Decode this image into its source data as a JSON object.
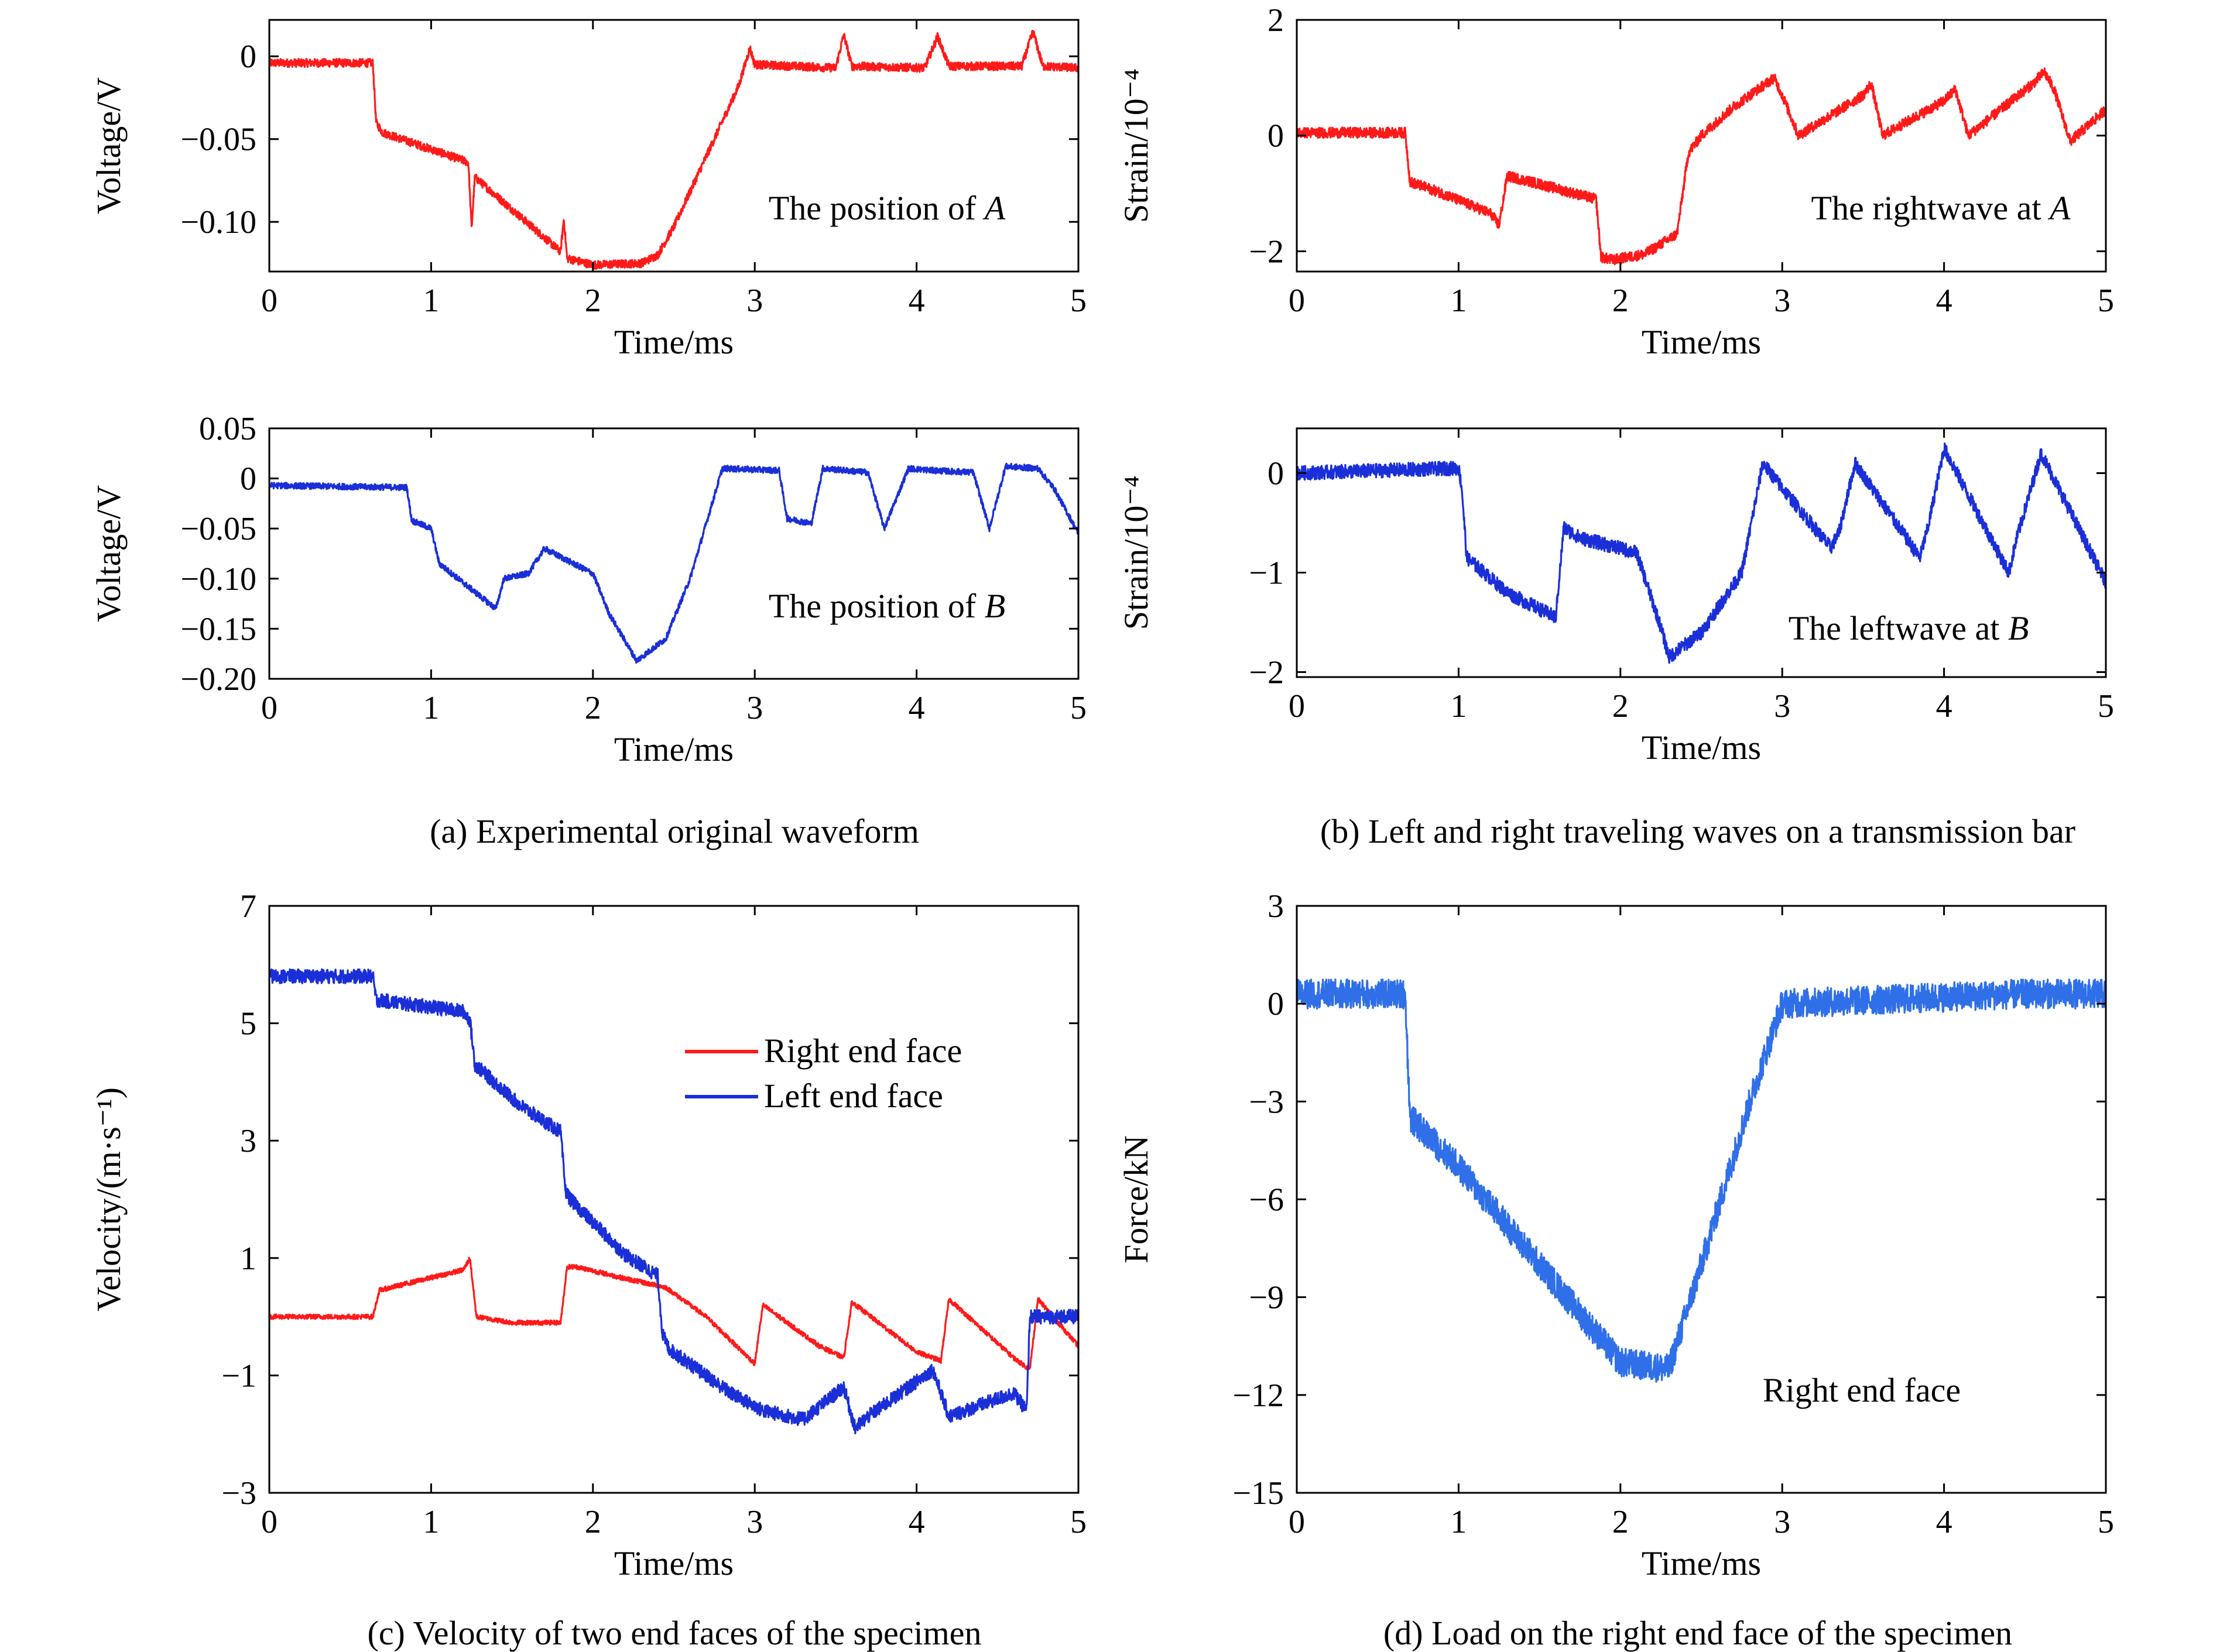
{
  "panels": {
    "a": {
      "caption": "(a) Experimental original waveform"
    },
    "b": {
      "caption": "(b) Left and right traveling waves on a transmission bar"
    },
    "c": {
      "caption": "(c) Velocity of two end faces of the specimen"
    },
    "d": {
      "caption": "(d) Load on the right end face of the specimen"
    }
  },
  "colors": {
    "red": "#ff1a1a",
    "blue": "#1a2fd8",
    "lightblue": "#2f6fe8"
  },
  "chart_data": [
    {
      "id": "a1",
      "type": "line",
      "xlabel": "Time/ms",
      "ylabel": "Voltage/V",
      "xlim": [
        0,
        5
      ],
      "ylim": [
        -0.13,
        0.022
      ],
      "xticks": [
        0,
        1,
        2,
        3,
        4,
        5
      ],
      "yticks": [
        0,
        -0.05,
        -0.1
      ],
      "ytick_labels": [
        "0",
        "−0.05",
        "−0.10"
      ],
      "annotation": {
        "text": "The position of ",
        "italic": "A"
      },
      "series": [
        {
          "color": "#ff1a1a",
          "noise": 0.0025,
          "x": [
            0,
            0.64,
            0.66,
            0.7,
            1.23,
            1.25,
            1.27,
            1.8,
            1.82,
            1.84,
            2.0,
            2.3,
            2.4,
            2.5,
            2.9,
            2.97,
            3.0,
            3.5,
            3.55,
            3.6,
            4.05,
            4.13,
            4.2,
            4.65,
            4.72,
            4.78,
            5.0
          ],
          "y": [
            -0.004,
            -0.004,
            -0.04,
            -0.046,
            -0.064,
            -0.104,
            -0.073,
            -0.118,
            -0.098,
            -0.122,
            -0.126,
            -0.125,
            -0.12,
            -0.103,
            -0.018,
            0.005,
            -0.005,
            -0.007,
            0.013,
            -0.006,
            -0.007,
            0.012,
            -0.006,
            -0.006,
            0.015,
            -0.006,
            -0.007
          ]
        }
      ]
    },
    {
      "id": "a2",
      "type": "line",
      "xlabel": "Time/ms",
      "ylabel": "Voltage/V",
      "xlim": [
        0,
        5
      ],
      "ylim": [
        -0.2,
        0.05
      ],
      "xticks": [
        0,
        1,
        2,
        3,
        4,
        5
      ],
      "yticks": [
        0.05,
        0,
        -0.05,
        -0.1,
        -0.15,
        -0.2
      ],
      "ytick_labels": [
        "0.05",
        "0",
        "−0.05",
        "−0.10",
        "−0.15",
        "−0.20"
      ],
      "annotation": {
        "text": "The position of ",
        "italic": "B"
      },
      "series": [
        {
          "color": "#1a2fd8",
          "noise": 0.003,
          "x": [
            0,
            0.85,
            0.88,
            1.0,
            1.05,
            1.4,
            1.45,
            1.6,
            1.7,
            2.0,
            2.1,
            2.27,
            2.45,
            2.6,
            2.8,
            3.15,
            3.2,
            3.35,
            3.42,
            3.7,
            3.8,
            3.95,
            4.1,
            4.35,
            4.45,
            4.55,
            4.75,
            4.85,
            5.0
          ],
          "y": [
            -0.007,
            -0.009,
            -0.042,
            -0.05,
            -0.085,
            -0.13,
            -0.1,
            -0.095,
            -0.07,
            -0.095,
            -0.135,
            -0.182,
            -0.16,
            -0.1,
            0.01,
            0.008,
            -0.04,
            -0.045,
            0.01,
            0.006,
            -0.05,
            0.01,
            0.008,
            0.006,
            -0.05,
            0.012,
            0.01,
            -0.01,
            -0.055
          ]
        }
      ]
    },
    {
      "id": "b1",
      "type": "line",
      "xlabel": "Time/ms",
      "ylabel": "Strain/10⁻⁴",
      "xlim": [
        0,
        5
      ],
      "ylim": [
        -2.35,
        2.0
      ],
      "xticks": [
        0,
        1,
        2,
        3,
        4,
        5
      ],
      "yticks": [
        2,
        0,
        -2
      ],
      "ytick_labels": [
        "2",
        "0",
        "−2"
      ],
      "annotation": {
        "text": "The rightwave at ",
        "italic": "A"
      },
      "series": [
        {
          "color": "#ff1a1a",
          "noise": 0.09,
          "x": [
            0,
            0.67,
            0.7,
            0.9,
            1.2,
            1.25,
            1.3,
            1.45,
            1.85,
            1.88,
            1.95,
            2.15,
            2.35,
            2.42,
            2.5,
            2.7,
            2.95,
            3.0,
            3.1,
            3.5,
            3.55,
            3.62,
            4.0,
            4.07,
            4.15,
            4.55,
            4.62,
            4.68,
            4.78,
            5.0
          ],
          "y": [
            0.05,
            0.05,
            -0.8,
            -1.0,
            -1.35,
            -1.55,
            -0.7,
            -0.8,
            -1.1,
            -2.1,
            -2.15,
            -2.05,
            -1.7,
            -0.3,
            0.0,
            0.5,
            1.0,
            0.7,
            0.0,
            0.7,
            0.9,
            0.0,
            0.6,
            0.8,
            0.0,
            0.9,
            1.1,
            0.8,
            -0.1,
            0.45
          ]
        }
      ]
    },
    {
      "id": "b2",
      "type": "line",
      "xlabel": "Time/ms",
      "ylabel": "Strain/10⁻⁴",
      "xlim": [
        0,
        5
      ],
      "ylim": [
        -2.05,
        0.45
      ],
      "xticks": [
        0,
        1,
        2,
        3,
        4,
        5
      ],
      "yticks": [
        0,
        -1,
        -2
      ],
      "ytick_labels": [
        "0",
        "−1",
        "−2"
      ],
      "annotation": {
        "text": "The leftwave at ",
        "italic": "B"
      },
      "series": [
        {
          "color": "#1a2fd8",
          "noise": 0.07,
          "x": [
            0,
            1.0,
            1.02,
            1.05,
            1.3,
            1.6,
            1.65,
            1.75,
            2.1,
            2.25,
            2.3,
            2.5,
            2.75,
            2.88,
            3.0,
            3.3,
            3.35,
            3.45,
            3.85,
            3.9,
            4.0,
            4.4,
            4.45,
            4.6,
            5.0
          ],
          "y": [
            0.0,
            0.05,
            -0.15,
            -0.85,
            -1.2,
            -1.45,
            -0.55,
            -0.65,
            -0.8,
            -1.55,
            -1.85,
            -1.6,
            -1.0,
            0.1,
            -0.15,
            -0.75,
            -0.6,
            0.1,
            -0.85,
            -0.55,
            0.25,
            -1.0,
            -0.65,
            0.2,
            -1.1
          ]
        }
      ]
    },
    {
      "id": "c",
      "type": "line",
      "xlabel": "Time/ms",
      "ylabel": "Velocity/(m·s⁻¹)",
      "xlim": [
        0,
        5
      ],
      "ylim": [
        -3,
        7
      ],
      "xticks": [
        0,
        1,
        2,
        3,
        4,
        5
      ],
      "yticks": [
        7,
        5,
        3,
        1,
        -1,
        -3
      ],
      "ytick_labels": [
        "7",
        "5",
        "3",
        "1",
        "−1",
        "−3"
      ],
      "legend": {
        "position": "top-right",
        "entries": [
          {
            "name": "Right end face",
            "color": "#ff1a1a"
          },
          {
            "name": "Left end face",
            "color": "#1a2fd8"
          }
        ]
      },
      "series": [
        {
          "name": "Right end face",
          "color": "#ff1a1a",
          "noise": 0.04,
          "x": [
            0,
            0.64,
            0.68,
            1.2,
            1.24,
            1.28,
            1.5,
            1.8,
            1.84,
            1.9,
            2.2,
            2.45,
            2.7,
            3.0,
            3.05,
            3.4,
            3.55,
            3.6,
            4.0,
            4.15,
            4.2,
            4.6,
            4.7,
            4.75,
            5.0
          ],
          "y": [
            0.0,
            0.0,
            0.45,
            0.8,
            1.0,
            0.0,
            -0.1,
            -0.1,
            0.85,
            0.85,
            0.65,
            0.5,
            0.0,
            -0.8,
            0.2,
            -0.5,
            -0.7,
            0.25,
            -0.6,
            -0.75,
            0.3,
            -0.7,
            -0.9,
            0.3,
            -0.5
          ]
        },
        {
          "name": "Left end face",
          "color": "#1a2fd8",
          "noise": 0.12,
          "x": [
            0,
            0.64,
            0.66,
            1.2,
            1.24,
            1.27,
            1.55,
            1.8,
            1.83,
            1.86,
            2.2,
            2.4,
            2.43,
            2.47,
            2.85,
            3.05,
            3.3,
            3.55,
            3.62,
            3.7,
            4.1,
            4.2,
            4.3,
            4.6,
            4.68,
            4.7,
            5.0
          ],
          "y": [
            5.8,
            5.8,
            5.4,
            5.2,
            5.05,
            4.3,
            3.6,
            3.15,
            2.15,
            2.0,
            1.05,
            0.7,
            -0.3,
            -0.55,
            -1.3,
            -1.6,
            -1.75,
            -1.2,
            -1.9,
            -1.7,
            -0.9,
            -1.7,
            -1.6,
            -1.3,
            -1.6,
            0.0,
            0.0
          ]
        }
      ]
    },
    {
      "id": "d",
      "type": "line",
      "xlabel": "Time/ms",
      "ylabel": "Force/kN",
      "xlim": [
        0,
        5
      ],
      "ylim": [
        -15,
        3
      ],
      "xticks": [
        0,
        1,
        2,
        3,
        4,
        5
      ],
      "yticks": [
        3,
        0,
        -3,
        -6,
        -9,
        -12,
        -15
      ],
      "ytick_labels": [
        "3",
        "0",
        "−3",
        "−6",
        "−9",
        "−12",
        "−15"
      ],
      "annotation": {
        "text": "Right end face",
        "italic": ""
      },
      "series": [
        {
          "color": "#2f6fe8",
          "noise": 0.45,
          "x": [
            0,
            0.67,
            0.7,
            0.8,
            1.0,
            1.5,
            2.0,
            2.3,
            2.5,
            2.8,
            3.0,
            3.5,
            4.0,
            4.5,
            5.0
          ],
          "y": [
            0.3,
            0.3,
            -3.5,
            -4.0,
            -5.0,
            -8.0,
            -11.0,
            -11.2,
            -8.0,
            -3.0,
            0.0,
            0.1,
            0.2,
            0.3,
            0.3
          ]
        }
      ]
    }
  ]
}
